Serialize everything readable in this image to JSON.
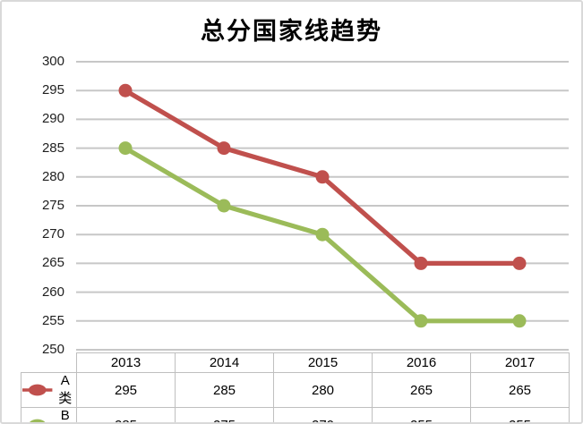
{
  "chart_data": {
    "type": "line",
    "title": "总分国家线趋势",
    "categories": [
      "2013",
      "2014",
      "2015",
      "2016",
      "2017"
    ],
    "series": [
      {
        "name": "A类",
        "color": "#C0504D",
        "values": [
          295,
          285,
          280,
          265,
          265
        ]
      },
      {
        "name": "B类",
        "color": "#9BBB59",
        "values": [
          285,
          275,
          270,
          255,
          255
        ]
      }
    ],
    "yticks": [
      300,
      295,
      290,
      285,
      280,
      275,
      270,
      265,
      260,
      255,
      250
    ],
    "ylim": [
      250,
      300
    ],
    "xlabel": "",
    "ylabel": "",
    "grid": "horizontal",
    "legend_position": "table-left",
    "marker": "circle",
    "colors": {
      "gridline": "#C7C7C7",
      "table_border": "#BFBFBF",
      "axis_text": "#1F1F1F",
      "frame_border": "#D9D9D9",
      "background": "#FFFFFF"
    }
  }
}
